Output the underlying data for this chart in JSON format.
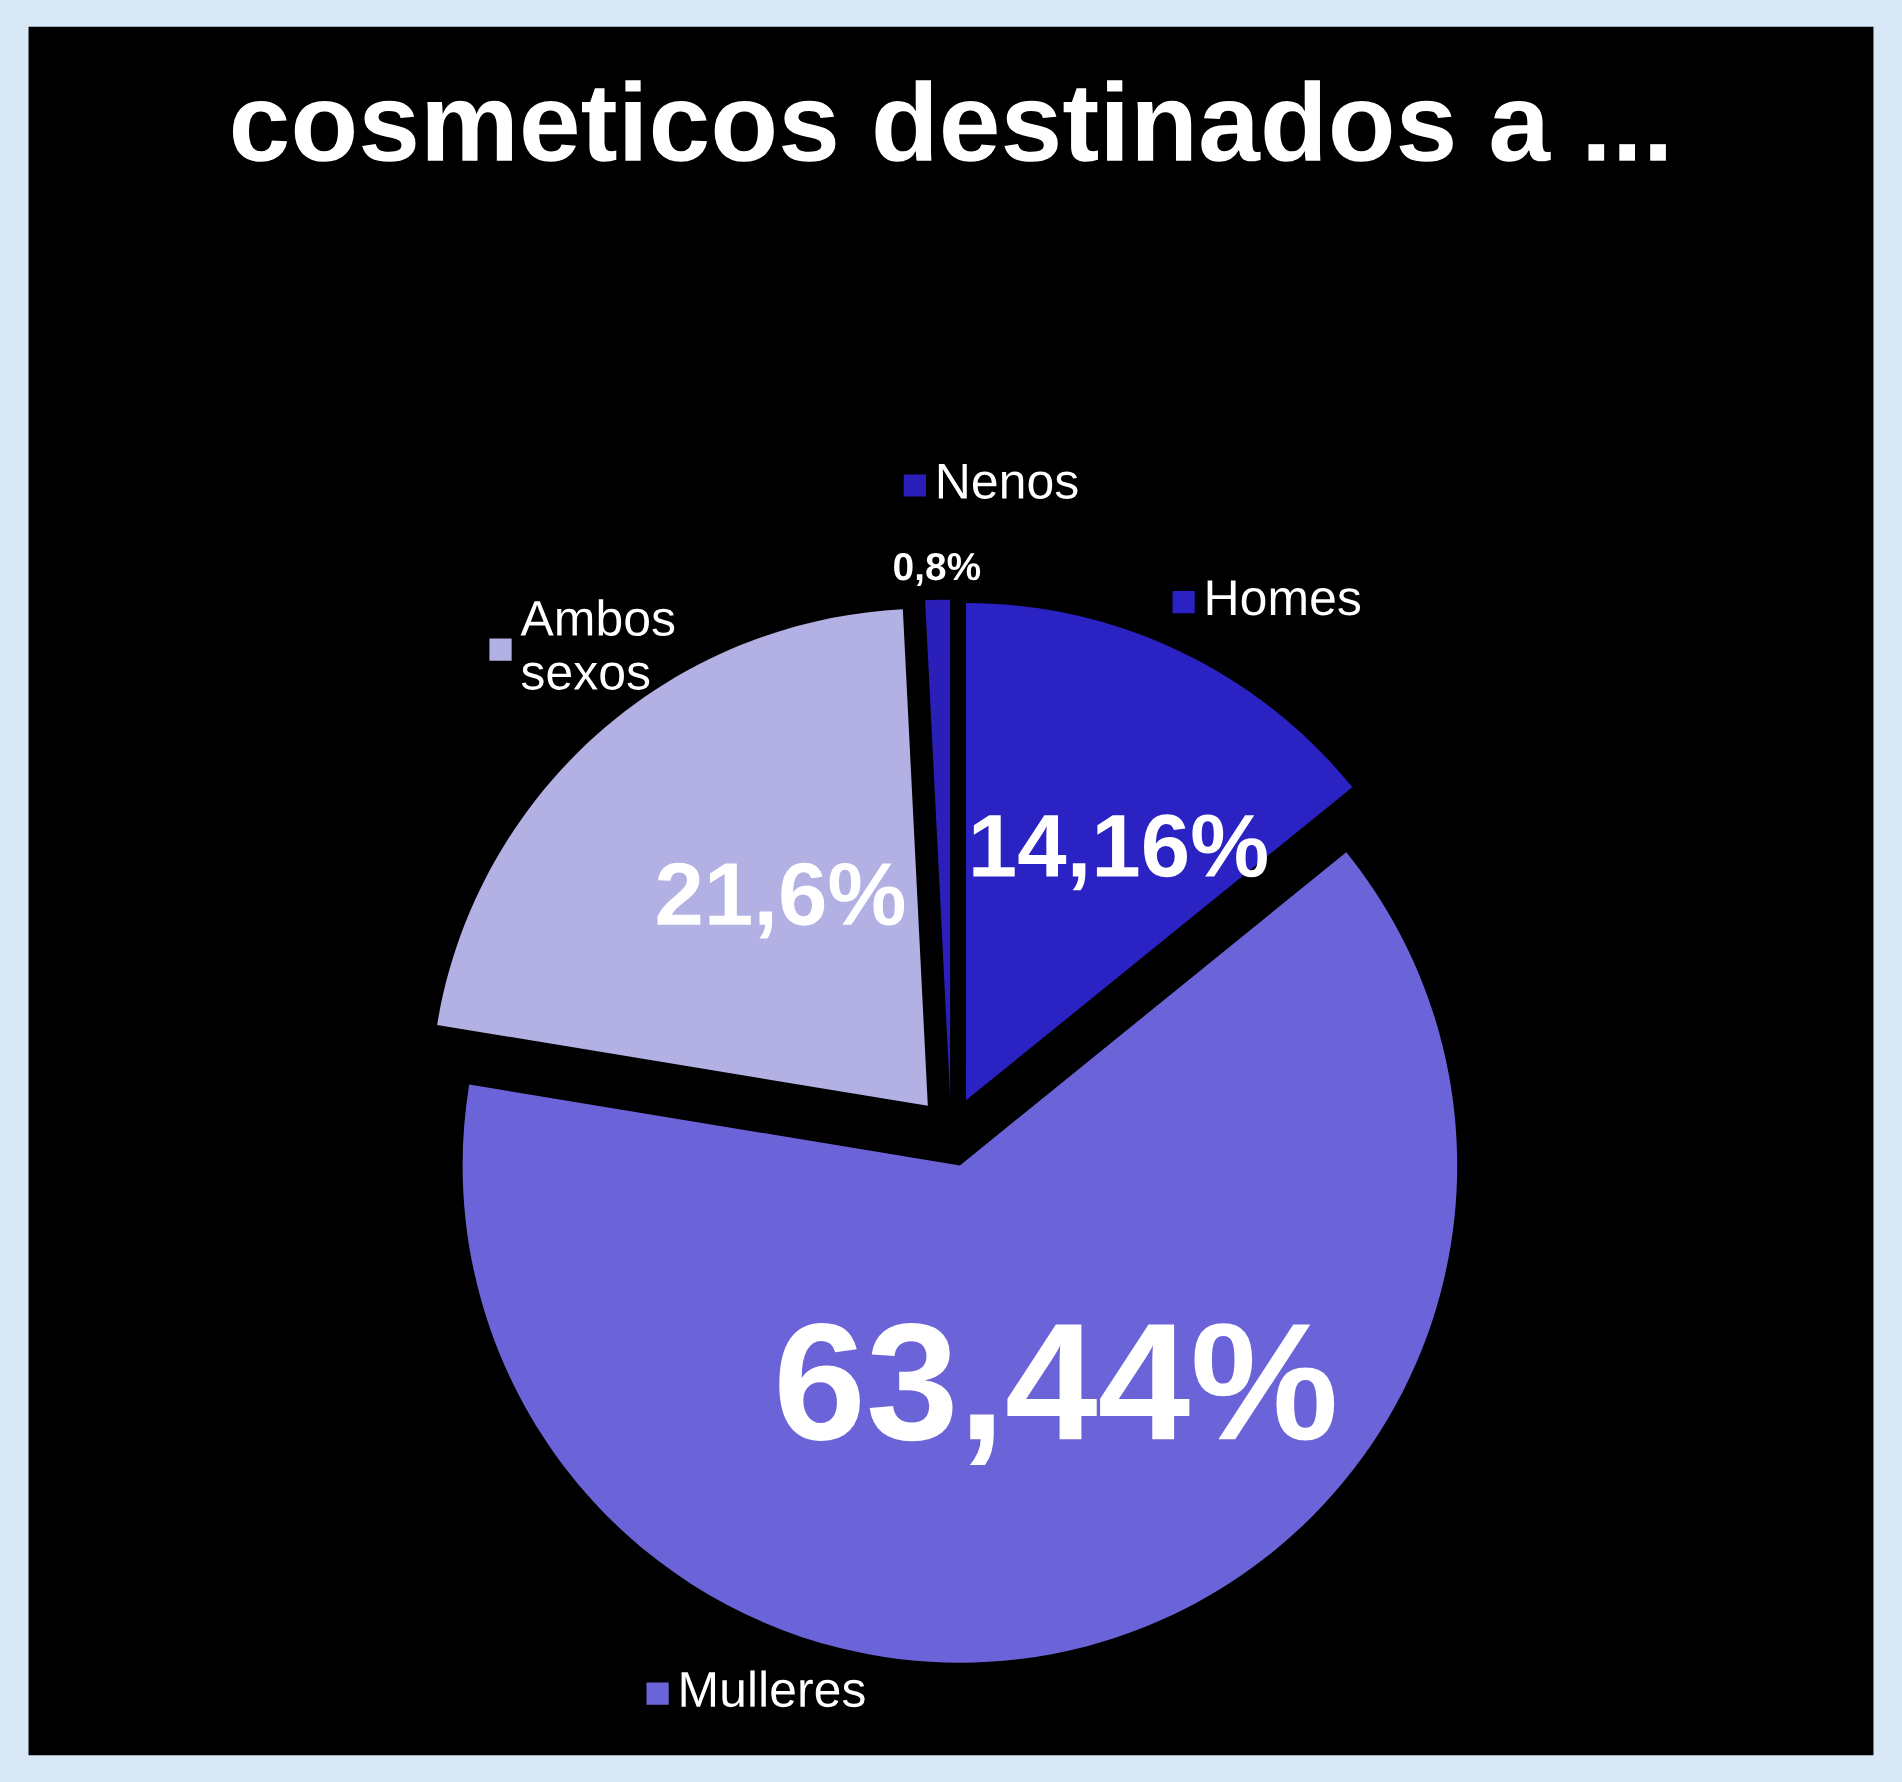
{
  "chart_data": {
    "type": "pie",
    "title": "cosmeticos destinados a ...",
    "categories": [
      "Homes",
      "Mulleres",
      "Ambos sexos",
      "Nenos"
    ],
    "values": [
      14.16,
      63.44,
      21.6,
      0.8
    ],
    "value_labels": [
      "14,16%",
      "63,44%",
      "21,6%",
      "0,8%"
    ],
    "colors": [
      "#2b22c4",
      "#6b64d9",
      "#b3b0e3",
      "#2a1fb8"
    ],
    "legend": "top"
  }
}
